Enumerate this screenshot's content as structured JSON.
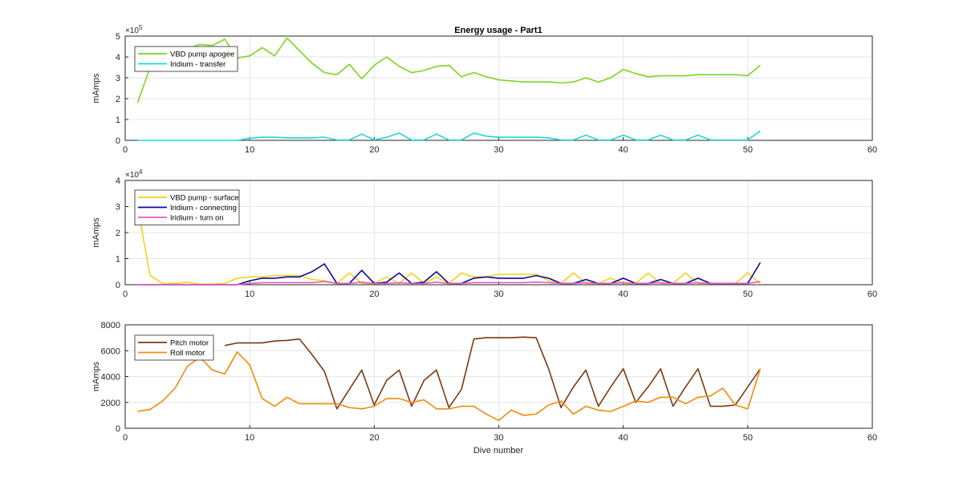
{
  "figure": {
    "xlabel": "Dive number"
  },
  "chart_data": [
    {
      "type": "line",
      "title": "Energy usage - Part1",
      "ylabel": "mAmps",
      "xlim": [
        0,
        60
      ],
      "ylim": [
        0,
        5
      ],
      "xticks": [
        "0",
        "10",
        "20",
        "30",
        "40",
        "50",
        "60"
      ],
      "yticks": [
        "0",
        "1",
        "2",
        "3",
        "4",
        "5"
      ],
      "exponent": {
        "base": "×10",
        "power": "5"
      },
      "grid": true,
      "legend_position": "top-left",
      "x": [
        1,
        2,
        3,
        4,
        5,
        6,
        7,
        8,
        9,
        10,
        11,
        12,
        13,
        14,
        15,
        16,
        17,
        18,
        19,
        20,
        21,
        22,
        23,
        24,
        25,
        26,
        27,
        28,
        29,
        30,
        31,
        32,
        33,
        34,
        35,
        36,
        37,
        38,
        39,
        40,
        41,
        42,
        43,
        44,
        45,
        46,
        47,
        48,
        49,
        50,
        51
      ],
      "series": [
        {
          "name": "VBD pump apogee",
          "color": "#7ed321",
          "values": [
            1.8,
            3.5,
            4.1,
            4.3,
            4.4,
            4.6,
            4.55,
            4.85,
            3.95,
            4.05,
            4.45,
            4.05,
            4.9,
            4.3,
            3.7,
            3.25,
            3.15,
            3.65,
            2.95,
            3.6,
            4.0,
            3.55,
            3.25,
            3.35,
            3.55,
            3.6,
            3.05,
            3.25,
            3.05,
            2.9,
            2.85,
            2.8,
            2.8,
            2.8,
            2.75,
            2.8,
            3.0,
            2.8,
            3.0,
            3.4,
            3.2,
            3.05,
            3.1,
            3.1,
            3.1,
            3.15,
            3.15,
            3.15,
            3.15,
            3.1,
            3.6
          ]
        },
        {
          "name": "Iridium - transfer",
          "color": "#1fd8d8",
          "values": [
            0,
            0,
            0,
            0,
            0,
            0,
            0,
            0,
            0,
            0.1,
            0.15,
            0.15,
            0.12,
            0.12,
            0.12,
            0.15,
            0.02,
            0.02,
            0.3,
            0.02,
            0.15,
            0.35,
            0.02,
            0.02,
            0.3,
            0.02,
            0.02,
            0.35,
            0.2,
            0.15,
            0.15,
            0.15,
            0.15,
            0.12,
            0.02,
            0.02,
            0.25,
            0.02,
            0.02,
            0.25,
            0.02,
            0.02,
            0.25,
            0.02,
            0.02,
            0.25,
            0.02,
            0.02,
            0.02,
            0.02,
            0.45
          ]
        }
      ]
    },
    {
      "type": "line",
      "title": "",
      "ylabel": "mAmps",
      "xlim": [
        0,
        60
      ],
      "ylim": [
        0,
        4
      ],
      "xticks": [
        "0",
        "10",
        "20",
        "30",
        "40",
        "50",
        "60"
      ],
      "yticks": [
        "0",
        "1",
        "2",
        "3",
        "4"
      ],
      "exponent": {
        "base": "×10",
        "power": "4"
      },
      "grid": true,
      "legend_position": "top-left",
      "x": [
        1,
        2,
        3,
        4,
        5,
        6,
        7,
        8,
        9,
        10,
        11,
        12,
        13,
        14,
        15,
        16,
        17,
        18,
        19,
        20,
        21,
        22,
        23,
        24,
        25,
        26,
        27,
        28,
        29,
        30,
        31,
        32,
        33,
        34,
        35,
        36,
        37,
        38,
        39,
        40,
        41,
        42,
        43,
        44,
        45,
        46,
        47,
        48,
        49,
        50,
        51
      ],
      "series": [
        {
          "name": "VBD pump - surface",
          "color": "#f5d21a",
          "values": [
            3.0,
            0.35,
            0.05,
            0.05,
            0.1,
            0.02,
            0.02,
            0.05,
            0.25,
            0.3,
            0.3,
            0.35,
            0.35,
            0.35,
            0.2,
            0.15,
            0.05,
            0.45,
            0.05,
            0.05,
            0.3,
            0.05,
            0.45,
            0.05,
            0.3,
            0.05,
            0.45,
            0.3,
            0.3,
            0.4,
            0.4,
            0.4,
            0.4,
            0.15,
            0.05,
            0.45,
            0.05,
            0.05,
            0.25,
            0.05,
            0.05,
            0.45,
            0.05,
            0.05,
            0.45,
            0.05,
            0.05,
            0.05,
            0.05,
            0.45,
            0.05
          ]
        },
        {
          "name": "Iridium - connecting",
          "color": "#0a0a96",
          "values": [
            0,
            0,
            0,
            0,
            0,
            0,
            0,
            0,
            0,
            0.15,
            0.25,
            0.25,
            0.3,
            0.3,
            0.5,
            0.8,
            0.05,
            0.05,
            0.55,
            0.05,
            0.1,
            0.45,
            0.05,
            0.1,
            0.5,
            0.05,
            0.05,
            0.25,
            0.3,
            0.25,
            0.25,
            0.25,
            0.35,
            0.25,
            0.05,
            0.05,
            0.2,
            0.05,
            0.05,
            0.25,
            0.05,
            0.05,
            0.2,
            0.05,
            0.05,
            0.25,
            0.05,
            0.05,
            0.05,
            0.05,
            0.85
          ]
        },
        {
          "name": "Iridium - turn on",
          "color": "#e65ac8",
          "values": [
            0,
            0,
            0,
            0,
            0,
            0,
            0,
            0,
            0,
            0.05,
            0.08,
            0.08,
            0.08,
            0.08,
            0.08,
            0.12,
            0.05,
            0.05,
            0.1,
            0.05,
            0.05,
            0.08,
            0.05,
            0.05,
            0.1,
            0.05,
            0.05,
            0.08,
            0.08,
            0.08,
            0.08,
            0.08,
            0.1,
            0.08,
            0.05,
            0.05,
            0.08,
            0.05,
            0.05,
            0.08,
            0.05,
            0.05,
            0.08,
            0.05,
            0.05,
            0.08,
            0.05,
            0.05,
            0.05,
            0.05,
            0.12
          ]
        }
      ]
    },
    {
      "type": "line",
      "title": "",
      "ylabel": "mAmps",
      "xlim": [
        0,
        60
      ],
      "ylim": [
        0,
        8000
      ],
      "xticks": [
        "0",
        "10",
        "20",
        "30",
        "40",
        "50",
        "60"
      ],
      "yticks": [
        "0",
        "2000",
        "4000",
        "6000",
        "8000"
      ],
      "grid": true,
      "legend_position": "top-left",
      "x": [
        1,
        2,
        3,
        4,
        5,
        6,
        7,
        8,
        9,
        10,
        11,
        12,
        13,
        14,
        15,
        16,
        17,
        18,
        19,
        20,
        21,
        22,
        23,
        24,
        25,
        26,
        27,
        28,
        29,
        30,
        31,
        32,
        33,
        34,
        35,
        36,
        37,
        38,
        39,
        40,
        41,
        42,
        43,
        44,
        45,
        46,
        47,
        48,
        49,
        50,
        51
      ],
      "series": [
        {
          "name": "Pitch motor",
          "color": "#7b3a10",
          "values": [
            null,
            null,
            null,
            null,
            null,
            null,
            null,
            6400,
            6600,
            6600,
            6600,
            6750,
            6800,
            6900,
            5700,
            4400,
            1500,
            3000,
            4500,
            1800,
            3700,
            4500,
            1700,
            3700,
            4500,
            1600,
            3000,
            6900,
            7000,
            7000,
            7000,
            7050,
            7000,
            4600,
            1600,
            3200,
            4500,
            1700,
            3200,
            4600,
            2000,
            3200,
            4600,
            1700,
            3200,
            4600,
            1700,
            1700,
            1800,
            3200,
            4600
          ]
        },
        {
          "name": "Roll motor",
          "color": "#f08a0f",
          "values": [
            1300,
            1450,
            2100,
            3100,
            4800,
            5500,
            4500,
            4200,
            5900,
            4900,
            2300,
            1700,
            2400,
            1900,
            1900,
            1900,
            1900,
            1600,
            1500,
            1700,
            2300,
            2300,
            2000,
            2200,
            1500,
            1500,
            1700,
            1700,
            1100,
            600,
            1400,
            1000,
            1100,
            1800,
            2100,
            1100,
            1700,
            1400,
            1300,
            1700,
            2100,
            2000,
            2400,
            2400,
            1900,
            2400,
            2500,
            3100,
            1800,
            1500,
            4600
          ]
        }
      ]
    }
  ]
}
